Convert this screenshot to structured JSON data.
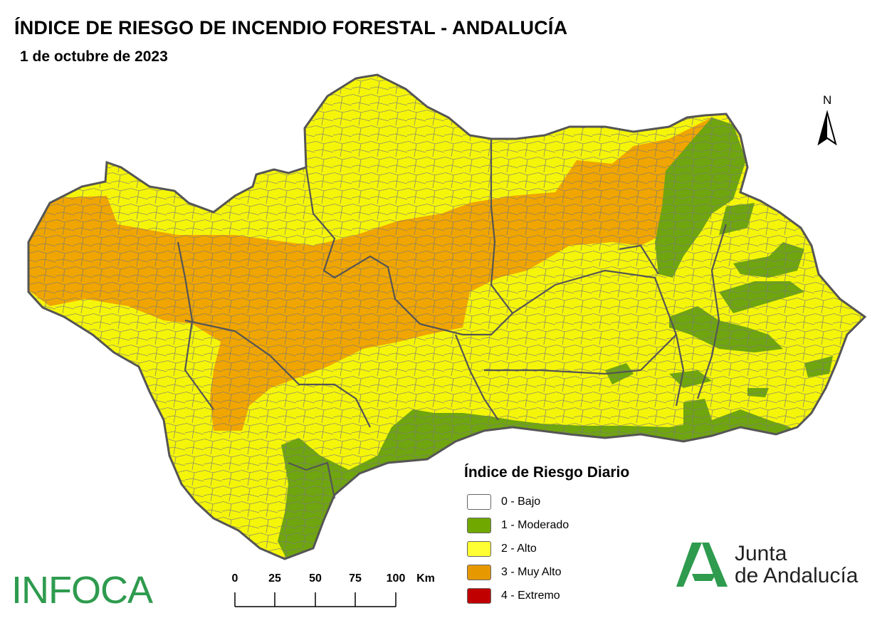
{
  "title": "ÍNDICE DE RIESGO DE INCENDIO FORESTAL - ANDALUCÍA",
  "date": "1 de octubre de 2023",
  "north_label": "N",
  "legend": {
    "title": "Índice de Riesgo Diario",
    "items": [
      {
        "label": "0 - Bajo",
        "color": "#ffffff"
      },
      {
        "label": "1 - Moderado",
        "color": "#70a800"
      },
      {
        "label": "2 - Alto",
        "color": "#ffff33"
      },
      {
        "label": "3 - Muy Alto",
        "color": "#e69800"
      },
      {
        "label": "4 - Extremo",
        "color": "#c00000"
      }
    ]
  },
  "scale_bar": {
    "ticks": [
      "0",
      "25",
      "50",
      "75",
      "100"
    ],
    "unit": "Km"
  },
  "logos": {
    "infoca": "INFOCA",
    "junta_line1": "Junta",
    "junta_line2": "de Andalucía"
  },
  "colors": {
    "alto": "#f5f50a",
    "muy_alto": "#f0a500",
    "moderado": "#6fa50f",
    "border": "#555555",
    "brand_green": "#2e9b4e"
  }
}
